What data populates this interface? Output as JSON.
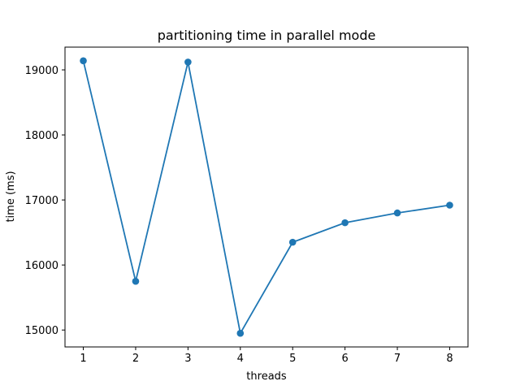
{
  "chart_data": {
    "type": "line",
    "title": "partitioning time in parallel mode",
    "xlabel": "threads",
    "ylabel": "time (ms)",
    "x": [
      1,
      2,
      3,
      4,
      5,
      6,
      7,
      8
    ],
    "series": [
      {
        "values": [
          19140,
          15750,
          19120,
          14950,
          16350,
          16650,
          16800,
          16920
        ]
      }
    ],
    "xlim": [
      0.65,
      8.35
    ],
    "ylim": [
      14740,
      19350
    ],
    "xticks": [
      1,
      2,
      3,
      4,
      5,
      6,
      7,
      8
    ],
    "yticks": [
      15000,
      16000,
      17000,
      18000,
      19000
    ],
    "grid": false,
    "markers": true,
    "colors": {
      "line": "#1f77b4",
      "marker": "#1f77b4"
    }
  }
}
